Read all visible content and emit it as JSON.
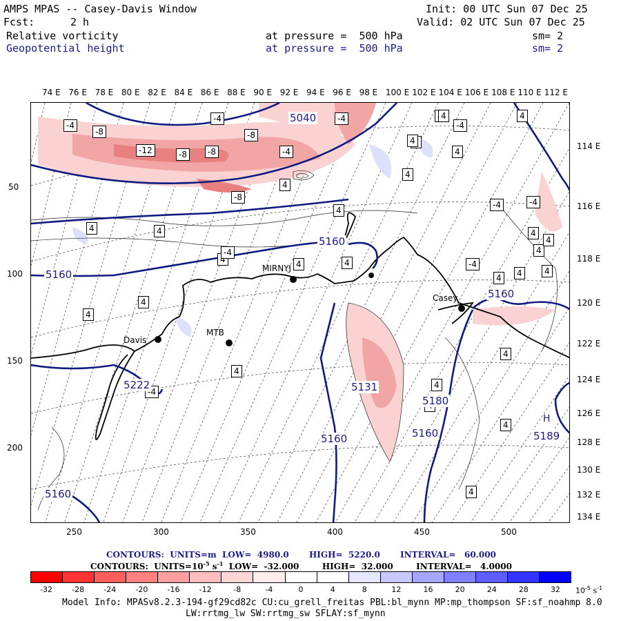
{
  "header": {
    "title": "AMPS MPAS -- Casey-Davis Window",
    "init": "Init: 00 UTC Sun 07 Dec 25",
    "fcst_label": "Fcst:",
    "fcst_value": "2 h",
    "valid": "Valid: 02 UTC Sun 07 Dec 25",
    "field1": "Relative vorticity",
    "field1_level": "at pressure =  500 hPa",
    "field1_sm": "sm= 2",
    "field2": "Geopotential height",
    "field2_level": "at pressure =  500 hPa",
    "field2_sm": "sm= 2"
  },
  "map": {
    "top_lon_labels": [
      "74 E",
      "76 E",
      "78 E",
      "80 E",
      "82 E",
      "84 E",
      "86 E",
      "88 E",
      "90 E",
      "92 E",
      "94 E",
      "96 E",
      "98 E",
      "100 E",
      "102 E",
      "104 E",
      "106 E",
      "108 E",
      "110 E",
      "112 E"
    ],
    "right_lon_labels": [
      "114 E",
      "116 E",
      "118 E",
      "120 E",
      "122 E",
      "124 E",
      "126 E",
      "128 E",
      "130 E",
      "132 E",
      "134 E"
    ],
    "left_axis": [
      "50",
      "100",
      "150",
      "200"
    ],
    "bottom_axis": [
      "250",
      "300",
      "350",
      "400",
      "450",
      "500"
    ],
    "stations": [
      "MIRNYJ",
      "Casey",
      "Davis",
      "MTB"
    ],
    "height_labels": [
      "5040",
      "5160",
      "5160",
      "5160",
      "5160",
      "5222",
      "5131",
      "5180",
      "5160",
      "5189",
      "5160"
    ],
    "vort_boxes": [
      "-4",
      "-8",
      "-12",
      "-8",
      "-8",
      "-4",
      "-8",
      "-8",
      "-4",
      "-4",
      "4",
      "4",
      "4",
      "4",
      "-4",
      "4",
      "4",
      "4",
      "-4",
      "4",
      "4",
      "4",
      "4",
      "-4",
      "4",
      "4",
      "4",
      "4",
      "-4",
      "4",
      "-4",
      "4",
      "4",
      "4",
      "4",
      "-4",
      "4",
      "4",
      "4",
      "4",
      "4",
      "4",
      "4",
      "4"
    ],
    "high_marker": "H",
    "colors": {
      "height_contour": "#0d1a80",
      "coast": "#000000",
      "negative": "#e8807f",
      "positive": "#9aa0e8"
    }
  },
  "contours": {
    "line1_label": "CONTOURS:  UNITS=m  LOW=  4980.0       HIGH=  5220.0       INTERVAL=   60.000",
    "line2_label": "CONTOURS:  UNITS=10",
    "line2_exp": "-5",
    "line2_rest": " s",
    "line2_exp2": "-1",
    "line2_tail": "  LOW=  -32.000        HIGH=  32.000        INTERVAL=   4.0000"
  },
  "colorbar": {
    "colors": [
      "#ff0000",
      "#ff3333",
      "#ff5c5c",
      "#ff8080",
      "#ff9e9e",
      "#ffbdbd",
      "#ffd6d6",
      "#ffecec",
      "#ffffff",
      "#ffffff",
      "#e6e6ff",
      "#c8c8ff",
      "#a6a6ff",
      "#8080ff",
      "#5c5cff",
      "#3333ff",
      "#0000ff"
    ],
    "ticks": [
      "-32",
      "-28",
      "-24",
      "-20",
      "-16",
      "-12",
      "-8",
      "-4",
      "0",
      "4",
      "8",
      "12",
      "16",
      "20",
      "24",
      "28",
      "32"
    ],
    "unit": "10",
    "unit_exp": "-5",
    "unit_s": " s",
    "unit_exp2": "-1"
  },
  "footer": {
    "line1": "Model Info: MPASv8.2.3-194-gf29cd82c CU:cu_grell_freitas PBL:bl_mynn MP:mp_thompson SF:sf_noahmp 8.0",
    "line2": "LW:rrtmg_lw SW:rrtmg_sw SFLAY:sf_mynn"
  }
}
